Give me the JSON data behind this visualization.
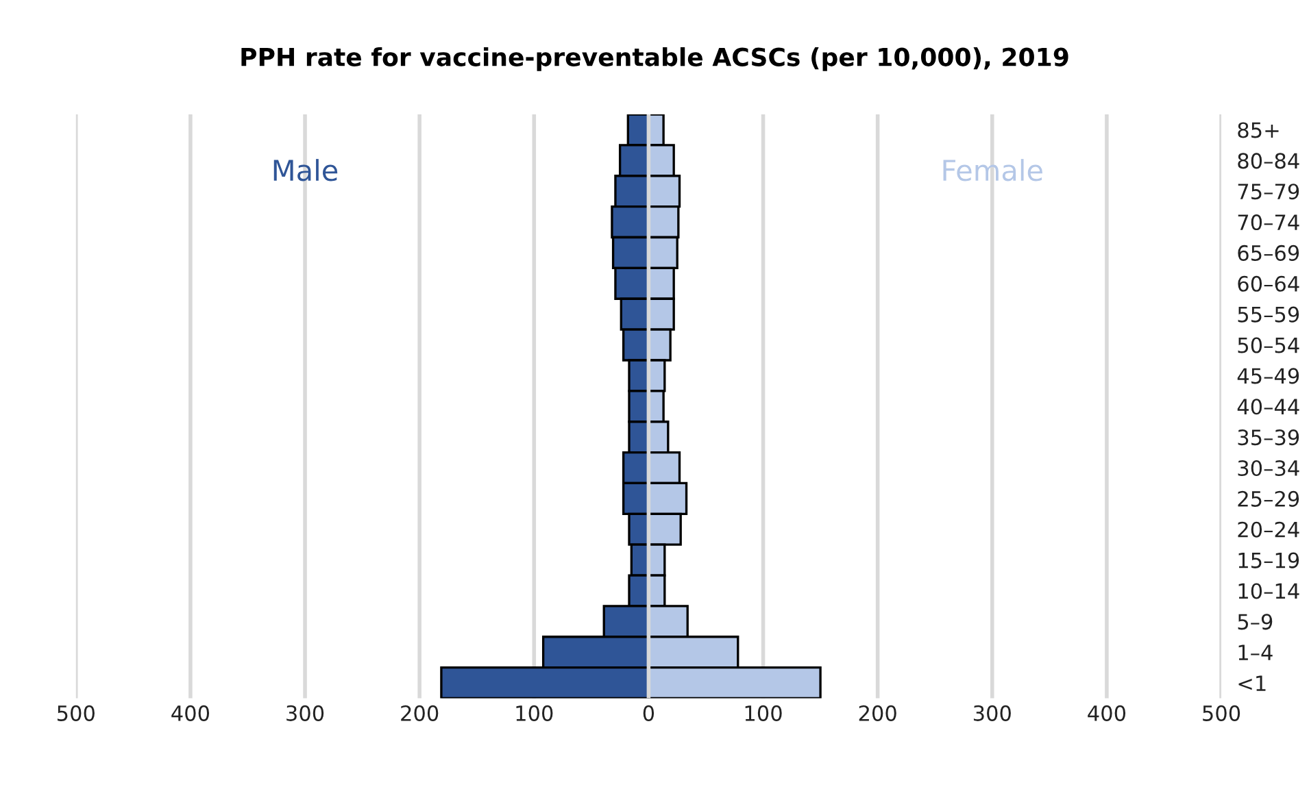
{
  "chart_data": {
    "type": "bar",
    "orientation": "horizontal",
    "title": "PPH rate for vaccine-preventable ACSCs (per 10,000), 2019",
    "categories": [
      "85+",
      "80–84",
      "75–79",
      "70–74",
      "65–69",
      "60–64",
      "55–59",
      "50–54",
      "45–49",
      "40–44",
      "35–39",
      "30–34",
      "25–29",
      "20–24",
      "15–19",
      "10–14",
      "5–9",
      "1–4",
      "<1"
    ],
    "series": [
      {
        "name": "Male",
        "color": "#2f5597",
        "values": [
          -18,
          -25,
          -29,
          -32,
          -31,
          -29,
          -24,
          -22,
          -17,
          -17,
          -17,
          -22,
          -22,
          -17,
          -15,
          -17,
          -39,
          -92,
          -181
        ]
      },
      {
        "name": "Female",
        "color": "#b4c7e7",
        "values": [
          13,
          22,
          27,
          26,
          25,
          22,
          22,
          19,
          14,
          13,
          17,
          27,
          33,
          28,
          14,
          14,
          34,
          78,
          150
        ]
      }
    ],
    "xlim": [
      -500,
      500
    ],
    "xticks": [
      {
        "value": -500,
        "label": "500"
      },
      {
        "value": -400,
        "label": "400"
      },
      {
        "value": -300,
        "label": "300"
      },
      {
        "value": -200,
        "label": "200"
      },
      {
        "value": -100,
        "label": "100"
      },
      0,
      100,
      200,
      300,
      400,
      500
    ],
    "grid": "x",
    "legend": false,
    "stacked": true
  }
}
